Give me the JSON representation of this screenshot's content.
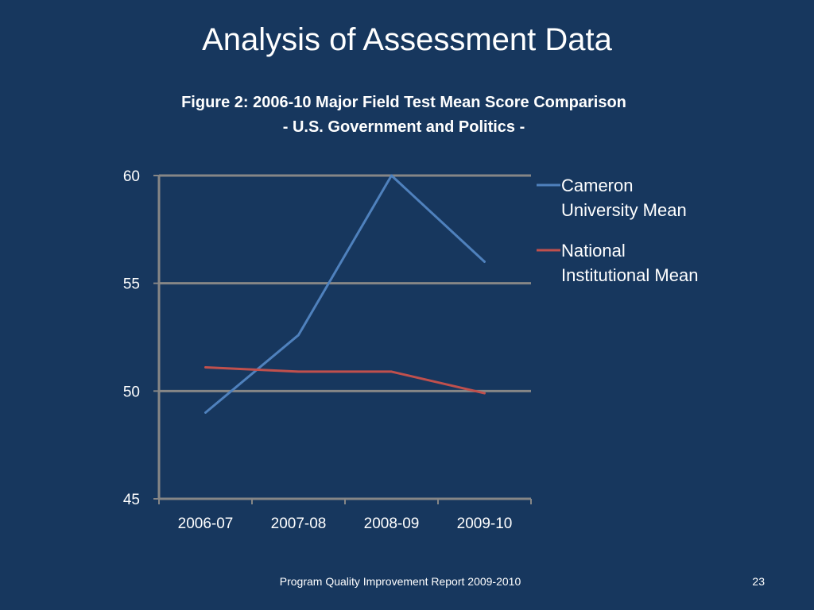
{
  "slide": {
    "title": "Analysis of Assessment Data",
    "footer": "Program Quality Improvement Report 2009-2010",
    "page_number": "23"
  },
  "colors": {
    "background": "#17375e",
    "axis": "#868686",
    "cameron": "#4f81bd",
    "national": "#c0504d"
  },
  "chart_data": {
    "type": "line",
    "title": "Figure 2: 2006-10 Major Field Test Mean Score Comparison",
    "subtitle": "- U.S. Government and Politics -",
    "categories": [
      "2006-07",
      "2007-08",
      "2008-09",
      "2009-10"
    ],
    "series": [
      {
        "name": "Cameron University Mean",
        "name_lines": [
          "Cameron",
          "University Mean"
        ],
        "values": [
          49,
          52.6,
          60,
          56
        ],
        "color": "#4f81bd"
      },
      {
        "name": "National Institutional Mean",
        "name_lines": [
          "National",
          "Institutional Mean"
        ],
        "values": [
          51.1,
          50.9,
          50.9,
          49.9
        ],
        "color": "#c0504d"
      }
    ],
    "ylim": [
      45,
      60
    ],
    "yticks": [
      45,
      50,
      55,
      60
    ],
    "xlabel": "",
    "ylabel": "",
    "grid": true,
    "legend": "right"
  }
}
